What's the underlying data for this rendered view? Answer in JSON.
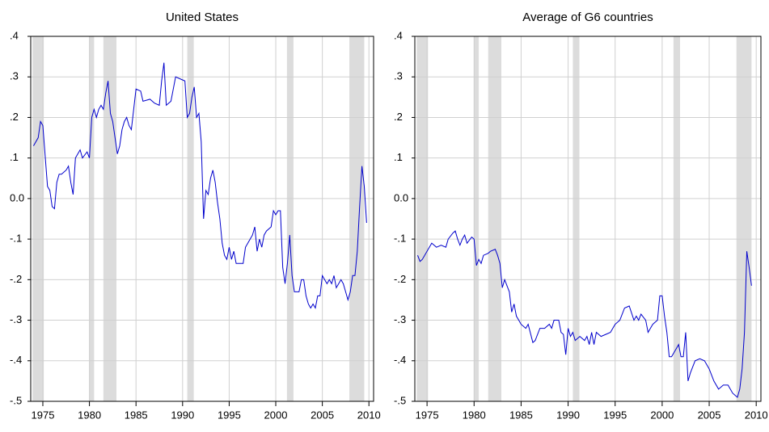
{
  "chart_data": [
    {
      "type": "line",
      "title": "United States",
      "color": "#0000cc",
      "grid": true,
      "shade_color": "#dcdcdc",
      "shaded_periods": [
        [
          1973.9,
          1975.1
        ],
        [
          1980.0,
          1980.5
        ],
        [
          1981.5,
          1982.9
        ],
        [
          1990.5,
          1991.2
        ],
        [
          2001.2,
          2001.9
        ],
        [
          2007.9,
          2009.5
        ]
      ],
      "xlim": [
        1973.7,
        2010.5
      ],
      "xticks": [
        1975,
        1980,
        1985,
        1990,
        1995,
        2000,
        2005,
        2010
      ],
      "ylim": [
        -0.5,
        0.4
      ],
      "yticks": [
        {
          "value": -0.5,
          "label": "-.5"
        },
        {
          "value": -0.4,
          "label": "-.4"
        },
        {
          "value": -0.3,
          "label": "-.3"
        },
        {
          "value": -0.2,
          "label": "-.2"
        },
        {
          "value": -0.1,
          "label": "-.1"
        },
        {
          "value": 0,
          "label": "0.0"
        },
        {
          "value": 0.1,
          "label": ".1"
        },
        {
          "value": 0.2,
          "label": ".2"
        },
        {
          "value": 0.3,
          "label": ".3"
        },
        {
          "value": 0.4,
          "label": ".4"
        }
      ],
      "x": [
        1974.0,
        1974.5,
        1974.75,
        1975.0,
        1975.5,
        1975.75,
        1976.0,
        1976.25,
        1976.5,
        1976.75,
        1977.0,
        1977.5,
        1977.75,
        1978.0,
        1978.25,
        1978.5,
        1978.75,
        1979.0,
        1979.25,
        1979.75,
        1980.0,
        1980.25,
        1980.5,
        1980.75,
        1981.0,
        1981.25,
        1981.5,
        1981.75,
        1982.0,
        1982.25,
        1982.5,
        1982.75,
        1983.0,
        1983.25,
        1983.5,
        1983.75,
        1984.0,
        1984.25,
        1984.5,
        1984.75,
        1985.0,
        1985.5,
        1985.75,
        1986.5,
        1987.0,
        1987.5,
        1987.75,
        1988.0,
        1988.25,
        1988.75,
        1989.0,
        1989.25,
        1989.75,
        1990.25,
        1990.5,
        1990.75,
        1991.0,
        1991.25,
        1991.5,
        1991.75,
        1992.0,
        1992.25,
        1992.5,
        1992.75,
        1993.0,
        1993.25,
        1993.5,
        1993.75,
        1994.0,
        1994.25,
        1994.5,
        1994.75,
        1995.0,
        1995.25,
        1995.5,
        1995.75,
        1996.5,
        1996.75,
        1997.0,
        1997.25,
        1997.5,
        1997.75,
        1998.0,
        1998.25,
        1998.5,
        1998.75,
        1999.0,
        1999.5,
        1999.75,
        2000.0,
        2000.25,
        2000.5,
        2000.75,
        2001.0,
        2001.25,
        2001.5,
        2001.75,
        2002.0,
        2002.5,
        2002.75,
        2003.0,
        2003.25,
        2003.5,
        2003.75,
        2004.0,
        2004.25,
        2004.5,
        2004.75,
        2005.0,
        2005.25,
        2005.5,
        2005.75,
        2006.0,
        2006.25,
        2006.5,
        2006.75,
        2007.0,
        2007.25,
        2007.5,
        2007.75,
        2008.0,
        2008.25,
        2008.5,
        2008.75,
        2009.0,
        2009.25,
        2009.5,
        2009.75
      ],
      "values": [
        0.13,
        0.15,
        0.19,
        0.18,
        0.03,
        0.02,
        -0.02,
        -0.025,
        0.04,
        0.06,
        0.06,
        0.07,
        0.08,
        0.04,
        0.01,
        0.1,
        0.11,
        0.12,
        0.1,
        0.115,
        0.1,
        0.2,
        0.22,
        0.2,
        0.22,
        0.23,
        0.22,
        0.26,
        0.29,
        0.21,
        0.19,
        0.15,
        0.11,
        0.13,
        0.17,
        0.19,
        0.2,
        0.18,
        0.17,
        0.22,
        0.27,
        0.265,
        0.24,
        0.245,
        0.235,
        0.23,
        0.29,
        0.335,
        0.23,
        0.24,
        0.27,
        0.3,
        0.295,
        0.29,
        0.2,
        0.21,
        0.25,
        0.275,
        0.2,
        0.21,
        0.14,
        -0.05,
        0.02,
        0.01,
        0.05,
        0.07,
        0.04,
        -0.01,
        -0.05,
        -0.11,
        -0.14,
        -0.15,
        -0.12,
        -0.15,
        -0.13,
        -0.16,
        -0.16,
        -0.12,
        -0.11,
        -0.1,
        -0.09,
        -0.07,
        -0.13,
        -0.1,
        -0.12,
        -0.09,
        -0.08,
        -0.07,
        -0.03,
        -0.04,
        -0.03,
        -0.03,
        -0.17,
        -0.21,
        -0.16,
        -0.09,
        -0.19,
        -0.23,
        -0.23,
        -0.2,
        -0.2,
        -0.24,
        -0.26,
        -0.27,
        -0.26,
        -0.27,
        -0.24,
        -0.24,
        -0.19,
        -0.2,
        -0.21,
        -0.2,
        -0.21,
        -0.19,
        -0.22,
        -0.21,
        -0.2,
        -0.21,
        -0.23,
        -0.25,
        -0.23,
        -0.19,
        -0.19,
        -0.13,
        -0.02,
        0.08,
        0.03,
        -0.06
      ]
    },
    {
      "type": "line",
      "title": "Average of G6 countries",
      "color": "#0000cc",
      "grid": true,
      "shade_color": "#dcdcdc",
      "shaded_periods": [
        [
          1973.9,
          1975.1
        ],
        [
          1980.0,
          1980.5
        ],
        [
          1981.5,
          1982.9
        ],
        [
          1990.5,
          1991.2
        ],
        [
          2001.2,
          2001.9
        ],
        [
          2007.9,
          2009.5
        ]
      ],
      "xlim": [
        1973.7,
        2010.5
      ],
      "xticks": [
        1975,
        1980,
        1985,
        1990,
        1995,
        2000,
        2005,
        2010
      ],
      "ylim": [
        -0.5,
        0.4
      ],
      "yticks": [
        {
          "value": -0.5,
          "label": "-.5"
        },
        {
          "value": -0.4,
          "label": "-.4"
        },
        {
          "value": -0.3,
          "label": "-.3"
        },
        {
          "value": -0.2,
          "label": "-.2"
        },
        {
          "value": -0.1,
          "label": "-.1"
        },
        {
          "value": 0,
          "label": "0.0"
        },
        {
          "value": 0.1,
          "label": ".1"
        },
        {
          "value": 0.2,
          "label": ".2"
        },
        {
          "value": 0.3,
          "label": ".3"
        },
        {
          "value": 0.4,
          "label": ".4"
        }
      ],
      "x": [
        1974.0,
        1974.25,
        1974.5,
        1975.0,
        1975.5,
        1976.0,
        1976.5,
        1977.0,
        1977.25,
        1977.75,
        1978.0,
        1978.25,
        1978.5,
        1978.75,
        1979.0,
        1979.25,
        1979.75,
        1980.0,
        1980.25,
        1980.5,
        1980.75,
        1981.0,
        1981.5,
        1981.75,
        1982.25,
        1982.5,
        1982.75,
        1983.0,
        1983.25,
        1983.75,
        1984.0,
        1984.25,
        1984.5,
        1984.75,
        1985.0,
        1985.5,
        1985.75,
        1986.25,
        1986.5,
        1987.0,
        1987.5,
        1988.0,
        1988.25,
        1988.5,
        1989.0,
        1989.25,
        1989.5,
        1989.75,
        1990.0,
        1990.25,
        1990.5,
        1990.75,
        1991.25,
        1991.75,
        1992.0,
        1992.25,
        1992.5,
        1992.75,
        1993.0,
        1993.5,
        1994.0,
        1994.5,
        1995.0,
        1995.5,
        1996.0,
        1996.5,
        1997.0,
        1997.25,
        1997.5,
        1997.75,
        1998.25,
        1998.5,
        1999.0,
        1999.5,
        1999.75,
        2000.0,
        2000.25,
        2000.5,
        2000.75,
        2001.0,
        2001.5,
        2001.75,
        2002.0,
        2002.25,
        2002.5,
        2002.75,
        2003.0,
        2003.5,
        2004.0,
        2004.5,
        2005.0,
        2005.5,
        2006.0,
        2006.5,
        2007.0,
        2007.5,
        2008.0,
        2008.25,
        2008.5,
        2008.75,
        2009.0,
        2009.25,
        2009.5
      ],
      "values": [
        -0.14,
        -0.155,
        -0.15,
        -0.13,
        -0.11,
        -0.12,
        -0.115,
        -0.12,
        -0.1,
        -0.085,
        -0.08,
        -0.1,
        -0.115,
        -0.1,
        -0.09,
        -0.11,
        -0.095,
        -0.1,
        -0.165,
        -0.15,
        -0.16,
        -0.14,
        -0.135,
        -0.13,
        -0.125,
        -0.14,
        -0.16,
        -0.22,
        -0.2,
        -0.23,
        -0.28,
        -0.26,
        -0.29,
        -0.3,
        -0.31,
        -0.32,
        -0.31,
        -0.355,
        -0.35,
        -0.32,
        -0.32,
        -0.31,
        -0.32,
        -0.3,
        -0.3,
        -0.33,
        -0.335,
        -0.385,
        -0.32,
        -0.34,
        -0.33,
        -0.35,
        -0.34,
        -0.35,
        -0.34,
        -0.36,
        -0.33,
        -0.36,
        -0.33,
        -0.34,
        -0.335,
        -0.33,
        -0.31,
        -0.3,
        -0.27,
        -0.265,
        -0.3,
        -0.29,
        -0.3,
        -0.285,
        -0.3,
        -0.33,
        -0.31,
        -0.3,
        -0.24,
        -0.24,
        -0.29,
        -0.33,
        -0.39,
        -0.39,
        -0.37,
        -0.36,
        -0.39,
        -0.39,
        -0.33,
        -0.45,
        -0.43,
        -0.4,
        -0.395,
        -0.4,
        -0.42,
        -0.45,
        -0.47,
        -0.46,
        -0.46,
        -0.48,
        -0.49,
        -0.47,
        -0.42,
        -0.33,
        -0.13,
        -0.17,
        -0.215
      ]
    }
  ]
}
